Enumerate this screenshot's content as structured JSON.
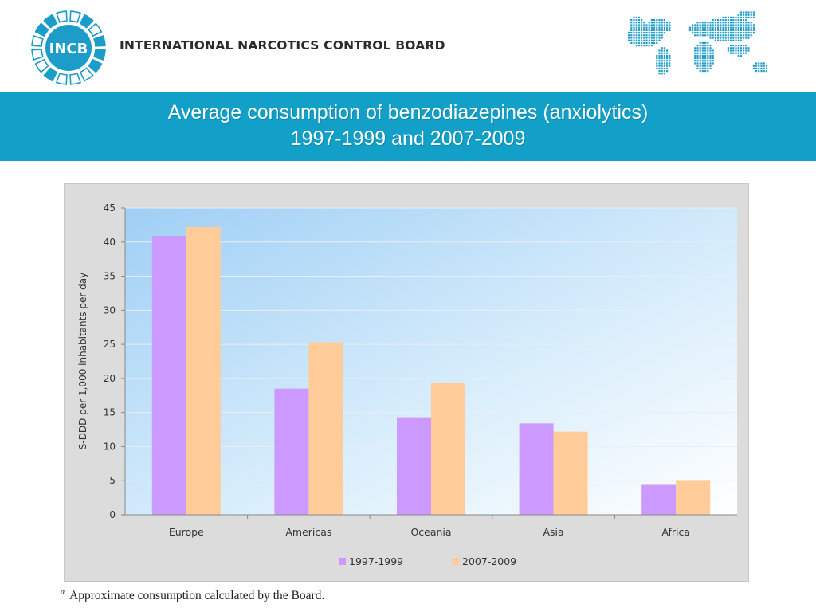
{
  "header": {
    "logo_text": "INCB",
    "org_name": "INTERNATIONAL NARCOTICS CONTROL BOARD"
  },
  "title": {
    "line1": "Average consumption of benzodiazepines (anxiolytics)",
    "line2": "1997-1999 and 2007-2009"
  },
  "colors": {
    "band": "#12a0c8",
    "logo_blue": "#1c9cc9",
    "series_1997": "#cc99ff",
    "series_2007": "#ffcc99"
  },
  "chart_data": {
    "type": "bar",
    "categories": [
      "Europe",
      "Americas",
      "Oceania",
      "Asia",
      "Africa"
    ],
    "series": [
      {
        "name": "1997-1999",
        "values": [
          40.9,
          18.5,
          14.3,
          13.4,
          4.5
        ],
        "color": "#cc99ff"
      },
      {
        "name": "2007-2009",
        "values": [
          42.2,
          25.3,
          19.4,
          12.2,
          5.1
        ],
        "color": "#ffcc99"
      }
    ],
    "ylabel": "S-DDD per 1,000 inhabitants per day",
    "ylim": [
      0,
      45
    ],
    "yticks": [
      "0",
      "5",
      "10",
      "15",
      "20",
      "25",
      "30",
      "35",
      "40",
      "45"
    ],
    "grid": true,
    "legend": "bottom"
  },
  "footnote": {
    "marker": "a",
    "text": "Approximate consumption calculated by the Board."
  }
}
